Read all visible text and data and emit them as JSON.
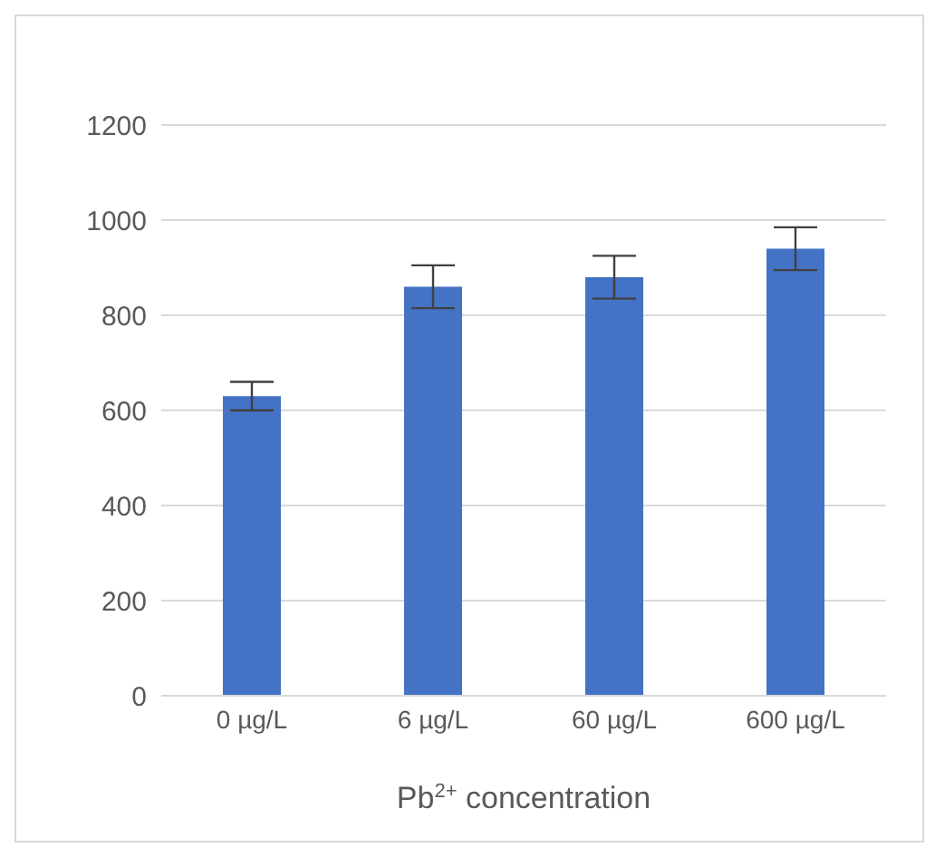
{
  "chart_data": {
    "type": "bar",
    "xlabel": "Pb$^{2+}$ concentration",
    "categories": [
      "0 µg/L",
      "6 µg/L",
      "60 µg/L",
      "600 µg/L"
    ],
    "values": [
      630,
      860,
      880,
      940
    ],
    "errors": [
      30,
      45,
      45,
      45
    ],
    "color": "#4472c4",
    "ylim": [
      0,
      1200
    ],
    "yticks": [
      0,
      200,
      400,
      600,
      800,
      1000,
      1200
    ],
    "grid": "y"
  }
}
